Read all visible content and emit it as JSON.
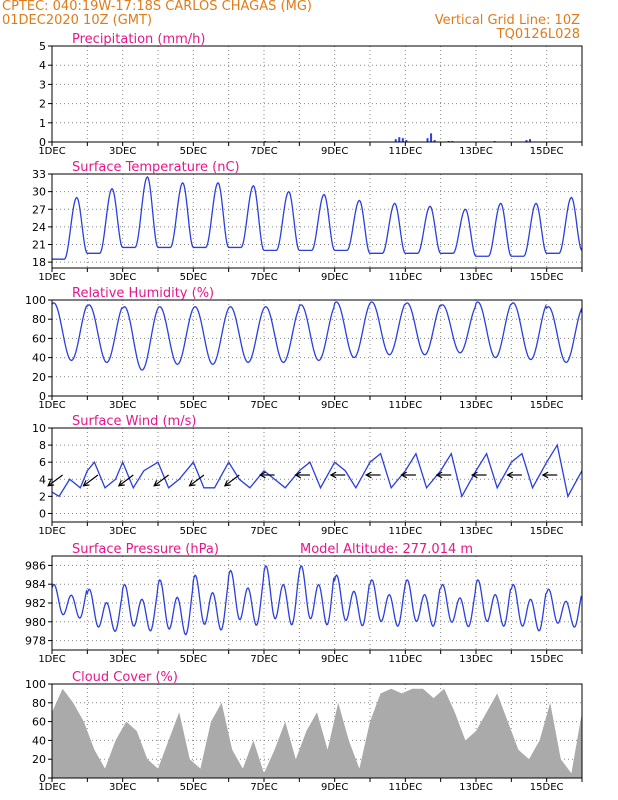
{
  "header": {
    "line1_left": "CPTEC:   040:19W-17:18S   CARLOS CHAGAS (MG)",
    "line2_left": "01DEC2020 10Z (GMT)",
    "line2_right": "Vertical Grid Line: 10Z",
    "line3_right": "TQ0126L028"
  },
  "model_altitude": "Model Altitude: 277.014 m",
  "colors": {
    "header": "#e07b1a",
    "title": "#e8168a",
    "line": "#2b3fe0",
    "fill": "#aaaaaa",
    "wind": "#000000",
    "grid": "#888888"
  },
  "chart_data": [
    {
      "id": "precip",
      "type": "bar",
      "title": "Precipitation (mm/h)",
      "xlim": [
        0,
        15
      ],
      "ylim": [
        0,
        5
      ],
      "yticks": [
        0,
        1,
        2,
        3,
        4,
        5
      ],
      "xticks": [
        "1DEC",
        "3DEC",
        "5DEC",
        "7DEC",
        "9DEC",
        "11DEC",
        "13DEC",
        "15DEC"
      ],
      "series": [
        {
          "x": [
            6.0,
            6.4,
            9.7,
            9.8,
            9.9,
            10.0,
            10.6,
            10.7,
            10.8,
            11.2,
            11.3,
            12.5,
            13.4,
            13.5
          ],
          "y": [
            0.05,
            0.05,
            0.15,
            0.25,
            0.2,
            0.1,
            0.2,
            0.45,
            0.1,
            0.05,
            0.05,
            0.05,
            0.1,
            0.15
          ]
        }
      ]
    },
    {
      "id": "temp",
      "type": "line",
      "title": "Surface Temperature (nC)",
      "xlim": [
        0,
        15
      ],
      "ylim": [
        17,
        33
      ],
      "yticks": [
        18,
        21,
        24,
        27,
        30,
        33
      ],
      "xticks": [
        "1DEC",
        "3DEC",
        "5DEC",
        "7DEC",
        "9DEC",
        "11DEC",
        "13DEC",
        "15DEC"
      ],
      "tmin": [
        18.5,
        19.5,
        20.5,
        20.5,
        20.5,
        20.5,
        20,
        20,
        20,
        19.5,
        19.5,
        19.5,
        19,
        19,
        19.5,
        20
      ],
      "tmax": [
        29,
        30.5,
        32.5,
        31.5,
        31.5,
        31,
        30,
        29.5,
        28.5,
        28,
        27.5,
        27,
        28,
        28,
        29,
        30.5
      ]
    },
    {
      "id": "rh",
      "type": "line",
      "title": "Relative Humidity (%)",
      "xlim": [
        0,
        15
      ],
      "ylim": [
        0,
        100
      ],
      "yticks": [
        0,
        20,
        40,
        60,
        80,
        100
      ],
      "xticks": [
        "1DEC",
        "3DEC",
        "5DEC",
        "7DEC",
        "9DEC",
        "11DEC",
        "13DEC",
        "15DEC"
      ],
      "rhmax": [
        97,
        95,
        93,
        93,
        93,
        93,
        93,
        95,
        98,
        98,
        97,
        95,
        98,
        97,
        93,
        88
      ],
      "rhmin": [
        37,
        35,
        27,
        33,
        33,
        35,
        35,
        37,
        40,
        43,
        43,
        45,
        40,
        38,
        35,
        33
      ]
    },
    {
      "id": "wind",
      "type": "line",
      "title": "Surface Wind (m/s)",
      "xlim": [
        0,
        15
      ],
      "ylim": [
        -1,
        10
      ],
      "yticks": [
        0,
        2,
        4,
        6,
        8,
        10
      ],
      "xticks": [
        "1DEC",
        "3DEC",
        "5DEC",
        "7DEC",
        "9DEC",
        "11DEC",
        "13DEC",
        "15DEC"
      ],
      "series": [
        {
          "x": [
            0,
            0.2,
            0.5,
            0.8,
            1.0,
            1.2,
            1.5,
            1.8,
            2.0,
            2.3,
            2.6,
            3.0,
            3.3,
            3.6,
            4.0,
            4.3,
            4.6,
            5.0,
            5.3,
            5.6,
            6.0,
            6.3,
            6.6,
            7.0,
            7.3,
            7.6,
            8.0,
            8.3,
            8.6,
            9.0,
            9.3,
            9.6,
            10.0,
            10.3,
            10.6,
            11.0,
            11.3,
            11.6,
            12.0,
            12.3,
            12.6,
            13.0,
            13.3,
            13.6,
            14.0,
            14.3,
            14.6,
            15.0
          ],
          "y": [
            2.5,
            2,
            4,
            3,
            5,
            6,
            3,
            4,
            6,
            3,
            5,
            6,
            3,
            4,
            6,
            3,
            3,
            6,
            4,
            3,
            5,
            4,
            3,
            5,
            6,
            3,
            6,
            5,
            3,
            6,
            7,
            3,
            5,
            7,
            3,
            5,
            7,
            2,
            5,
            7,
            3,
            6,
            7,
            3,
            6,
            8,
            2,
            5
          ]
        }
      ],
      "arrows": [
        {
          "x": 0.3,
          "u": -1,
          "v": -1
        },
        {
          "x": 1.3,
          "u": -1,
          "v": -1
        },
        {
          "x": 2.3,
          "u": -1,
          "v": -1
        },
        {
          "x": 3.3,
          "u": -1,
          "v": -1
        },
        {
          "x": 4.3,
          "u": -1,
          "v": -1
        },
        {
          "x": 5.3,
          "u": -1,
          "v": -1
        },
        {
          "x": 6.3,
          "u": -1,
          "v": 0
        },
        {
          "x": 7.3,
          "u": -1,
          "v": 0
        },
        {
          "x": 8.3,
          "u": -1,
          "v": 0
        },
        {
          "x": 9.3,
          "u": -1,
          "v": 0
        },
        {
          "x": 10.3,
          "u": -1,
          "v": 0
        },
        {
          "x": 11.3,
          "u": -1,
          "v": 0
        },
        {
          "x": 12.3,
          "u": -1,
          "v": 0
        },
        {
          "x": 13.3,
          "u": -1,
          "v": 0
        },
        {
          "x": 14.3,
          "u": -1,
          "v": 0
        }
      ]
    },
    {
      "id": "pres",
      "type": "line",
      "title": "Surface Pressure (hPa)",
      "xlim": [
        0,
        15
      ],
      "ylim": [
        977,
        987
      ],
      "yticks": [
        978,
        980,
        982,
        984,
        986
      ],
      "xticks": [
        "1DEC",
        "3DEC",
        "5DEC",
        "7DEC",
        "9DEC",
        "11DEC",
        "13DEC",
        "15DEC"
      ],
      "pmax": [
        984,
        983.5,
        984,
        984.5,
        985,
        985.5,
        986,
        986,
        985,
        984.5,
        984.5,
        984,
        984.5,
        984,
        983.5,
        983
      ],
      "pmin": [
        980,
        978.5,
        978.5,
        978,
        978.5,
        979,
        979,
        979,
        979,
        979,
        979,
        979,
        979,
        978.5,
        979,
        978.5
      ]
    },
    {
      "id": "cloud",
      "type": "area",
      "title": "Cloud Cover (%)",
      "xlim": [
        0,
        15
      ],
      "ylim": [
        0,
        100
      ],
      "yticks": [
        0,
        20,
        40,
        60,
        80,
        100
      ],
      "xticks": [
        "1DEC",
        "3DEC",
        "5DEC",
        "7DEC",
        "9DEC",
        "11DEC",
        "13DEC",
        "15DEC"
      ],
      "series": [
        {
          "x": [
            0,
            0.3,
            0.6,
            0.9,
            1.2,
            1.5,
            1.8,
            2.1,
            2.4,
            2.7,
            3.0,
            3.3,
            3.6,
            3.9,
            4.2,
            4.5,
            4.8,
            5.1,
            5.4,
            5.7,
            6.0,
            6.3,
            6.6,
            6.9,
            7.2,
            7.5,
            7.8,
            8.1,
            8.4,
            8.7,
            9.0,
            9.3,
            9.6,
            9.9,
            10.2,
            10.5,
            10.8,
            11.1,
            11.4,
            11.7,
            12.0,
            12.3,
            12.6,
            12.9,
            13.2,
            13.5,
            13.8,
            14.1,
            14.4,
            14.7,
            15.0
          ],
          "y": [
            70,
            95,
            80,
            60,
            30,
            10,
            40,
            60,
            50,
            20,
            10,
            40,
            70,
            20,
            10,
            60,
            80,
            30,
            10,
            40,
            5,
            30,
            60,
            20,
            50,
            70,
            30,
            80,
            40,
            10,
            60,
            90,
            95,
            90,
            95,
            95,
            85,
            95,
            70,
            40,
            50,
            70,
            90,
            60,
            30,
            20,
            40,
            80,
            20,
            5,
            70
          ]
        }
      ]
    }
  ]
}
